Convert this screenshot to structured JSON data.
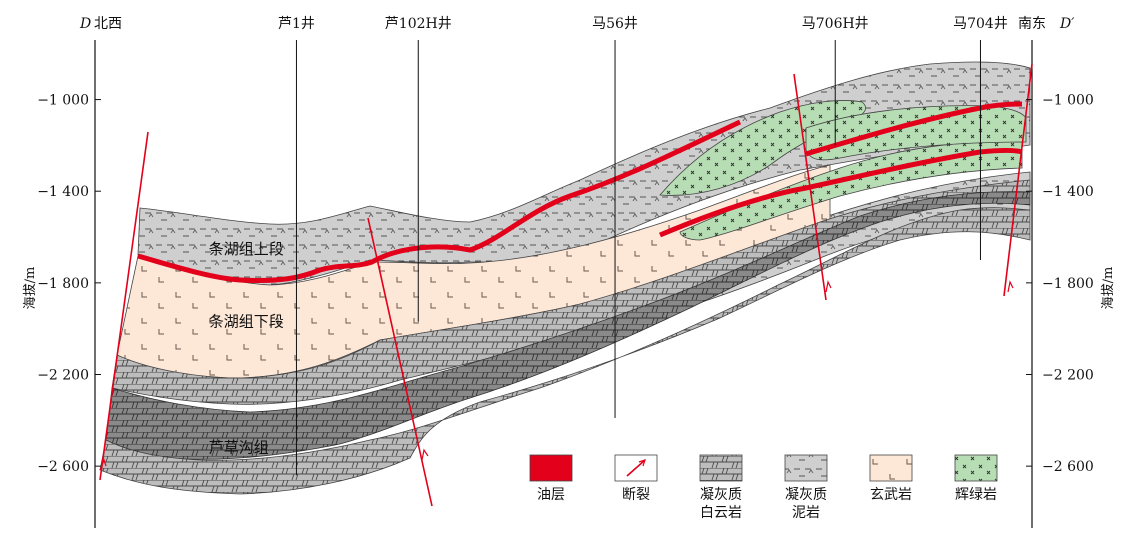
{
  "chart_data": {
    "type": "geologic-cross-section",
    "title": "",
    "section_ends": {
      "left": "D",
      "right": "D′"
    },
    "left_direction": "北西",
    "right_direction": "南东",
    "ylabel_left": "海拔/m",
    "ylabel_right": "海拔/m",
    "yticks": [
      -1000,
      -1400,
      -1800,
      -2200,
      -2600
    ],
    "ytick_labels": [
      "−1 000",
      "−1 400",
      "−1 800",
      "−2 200",
      "−2 600"
    ],
    "ylim": [
      -2870,
      -740
    ],
    "wells": [
      {
        "name": "芦1井",
        "x": 0.215,
        "top": -740,
        "bottom": -2640
      },
      {
        "name": "芦102H井",
        "x": 0.345,
        "top": -740,
        "bottom": -1970
      },
      {
        "name": "马56井",
        "x": 0.555,
        "top": -740,
        "bottom": -2390
      },
      {
        "name": "马706H井",
        "x": 0.79,
        "top": -740,
        "bottom": -1200
      },
      {
        "name": "马704井",
        "x": 0.945,
        "top": -740,
        "bottom": -1700
      }
    ],
    "layer_labels": [
      {
        "text": "条湖组上段",
        "x": 0.1,
        "y": -1675
      },
      {
        "text": "条湖组下段",
        "x": 0.1,
        "y": -1990
      },
      {
        "text": "芦草沟组",
        "x": 0.1,
        "y": -2540
      }
    ],
    "legend": [
      {
        "key": "oil",
        "label": [
          "油层"
        ],
        "color": "#e3001b"
      },
      {
        "key": "fault",
        "label": [
          "断裂"
        ],
        "color": "#e3001b"
      },
      {
        "key": "dolomite",
        "label": [
          "凝灰质",
          "白云岩"
        ],
        "color": "#b9b9b9"
      },
      {
        "key": "mudstone",
        "label": [
          "凝灰质",
          "泥岩"
        ],
        "color": "#c4c4c4"
      },
      {
        "key": "basalt",
        "label": [
          "玄武岩"
        ],
        "color": "#fde7d6"
      },
      {
        "key": "diabase",
        "label": [
          "辉绿岩"
        ],
        "color": "#b7ddb4"
      }
    ],
    "colors": {
      "oil": "#e3001b",
      "basalt": "#fde7d6",
      "mudstone": "#cfcfcf",
      "dolomite": "#bdbdbd",
      "lucaogou": "#8e8e8e",
      "diabase": "#b7ddb4",
      "fault": "#e3001b"
    }
  }
}
